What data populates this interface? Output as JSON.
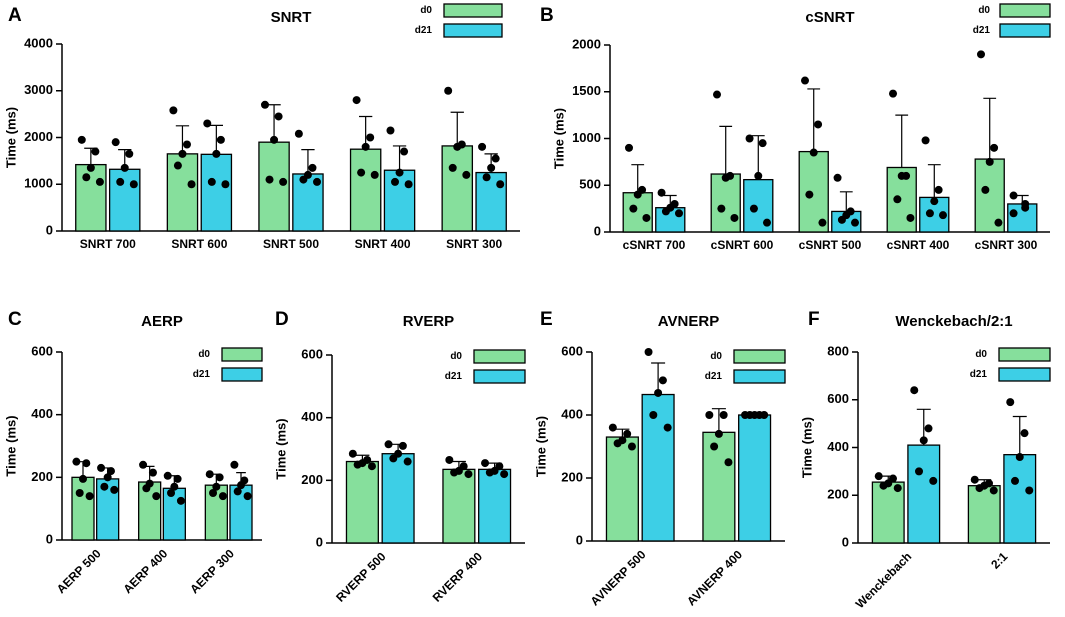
{
  "chart_data": [
    {
      "type": "bar",
      "panel": "A",
      "title": "SNRT",
      "ylabel": "Time (ms)",
      "legend": "upper right",
      "rotate_labels": false,
      "categories": [
        "SNRT 700",
        "SNRT 600",
        "SNRT 500",
        "SNRT 400",
        "SNRT 300"
      ],
      "ylim": [
        0,
        4000
      ],
      "yticks": [
        0,
        1000,
        2000,
        3000,
        4000
      ],
      "series": [
        {
          "name": "d0",
          "color": "#86df9c",
          "values": [
            1420,
            1650,
            1900,
            1750,
            1820
          ],
          "errors": [
            350,
            600,
            800,
            700,
            720
          ],
          "points": [
            [
              1950,
              1700,
              1350,
              1150,
              1050
            ],
            [
              2580,
              1850,
              1650,
              1400,
              1000
            ],
            [
              2700,
              2450,
              1950,
              1100,
              1050
            ],
            [
              2800,
              2000,
              1800,
              1250,
              1200
            ],
            [
              3000,
              1850,
              1800,
              1350,
              1200
            ]
          ]
        },
        {
          "name": "d21",
          "color": "#3dcfe6",
          "values": [
            1320,
            1640,
            1220,
            1300,
            1250
          ],
          "errors": [
            420,
            620,
            520,
            520,
            400
          ],
          "points": [
            [
              1900,
              1650,
              1350,
              1050,
              1000
            ],
            [
              2300,
              1950,
              1650,
              1050,
              1000
            ],
            [
              2080,
              1350,
              1200,
              1100,
              1050
            ],
            [
              2150,
              1700,
              1250,
              1050,
              1000
            ],
            [
              1800,
              1550,
              1350,
              1150,
              1000
            ]
          ]
        }
      ]
    },
    {
      "type": "bar",
      "panel": "B",
      "title": "cSNRT",
      "ylabel": "Time (ms)",
      "legend": "upper right",
      "rotate_labels": false,
      "categories": [
        "cSNRT 700",
        "cSNRT 600",
        "cSNRT 500",
        "cSNRT 400",
        "cSNRT 300"
      ],
      "ylim": [
        0,
        2000
      ],
      "yticks": [
        0,
        500,
        1000,
        1500,
        2000
      ],
      "series": [
        {
          "name": "d0",
          "color": "#86df9c",
          "values": [
            420,
            620,
            860,
            690,
            780
          ],
          "errors": [
            300,
            510,
            670,
            560,
            650
          ],
          "points": [
            [
              900,
              450,
              400,
              250,
              150
            ],
            [
              1470,
              600,
              580,
              250,
              150
            ],
            [
              1620,
              1150,
              850,
              400,
              100
            ],
            [
              1480,
              600,
              600,
              350,
              150
            ],
            [
              1900,
              900,
              750,
              450,
              100
            ]
          ]
        },
        {
          "name": "d21",
          "color": "#3dcfe6",
          "values": [
            260,
            560,
            220,
            370,
            300
          ],
          "errors": [
            130,
            470,
            210,
            350,
            90
          ],
          "points": [
            [
              420,
              300,
              260,
              220,
              200
            ],
            [
              1000,
              950,
              600,
              250,
              100
            ],
            [
              580,
              220,
              180,
              130,
              100
            ],
            [
              980,
              450,
              330,
              200,
              180
            ],
            [
              390,
              300,
              260,
              200
            ]
          ]
        }
      ]
    },
    {
      "type": "bar",
      "panel": "C",
      "title": "AERP",
      "ylabel": "Time (ms)",
      "legend": "upper right",
      "rotate_labels": true,
      "categories": [
        "AERP 500",
        "AERP 400",
        "AERP 300"
      ],
      "ylim": [
        0,
        600
      ],
      "yticks": [
        0,
        200,
        400,
        600
      ],
      "series": [
        {
          "name": "d0",
          "color": "#86df9c",
          "values": [
            200,
            185,
            175
          ],
          "errors": [
            50,
            50,
            35
          ],
          "points": [
            [
              250,
              245,
              195,
              150,
              140
            ],
            [
              240,
              215,
              180,
              165,
              140
            ],
            [
              210,
              200,
              170,
              150,
              140
            ]
          ]
        },
        {
          "name": "d21",
          "color": "#3dcfe6",
          "values": [
            195,
            165,
            175
          ],
          "errors": [
            35,
            40,
            40
          ],
          "points": [
            [
              230,
              220,
              200,
              170,
              160
            ],
            [
              205,
              195,
              170,
              150,
              125
            ],
            [
              240,
              190,
              175,
              155,
              140
            ]
          ]
        }
      ]
    },
    {
      "type": "bar",
      "panel": "D",
      "title": "RVERP",
      "ylabel": "Time (ms)",
      "legend": "upper right",
      "rotate_labels": true,
      "categories": [
        "RVERP 500",
        "RVERP 400"
      ],
      "ylim": [
        0,
        600
      ],
      "yticks": [
        0,
        200,
        400,
        600
      ],
      "series": [
        {
          "name": "d0",
          "color": "#86df9c",
          "values": [
            260,
            235
          ],
          "errors": [
            20,
            25
          ],
          "points": [
            [
              285,
              265,
              255,
              250,
              245
            ],
            [
              265,
              245,
              230,
              225,
              220
            ]
          ]
        },
        {
          "name": "d21",
          "color": "#3dcfe6",
          "values": [
            285,
            235
          ],
          "errors": [
            30,
            20
          ],
          "points": [
            [
              315,
              310,
              285,
              270,
              260
            ],
            [
              255,
              245,
              230,
              225,
              220
            ]
          ]
        }
      ]
    },
    {
      "type": "bar",
      "panel": "E",
      "title": "AVNERP",
      "ylabel": "Time (ms)",
      "legend": "upper right",
      "rotate_labels": true,
      "categories": [
        "AVNERP 500",
        "AVNERP 400"
      ],
      "ylim": [
        0,
        600
      ],
      "yticks": [
        0,
        200,
        400,
        600
      ],
      "series": [
        {
          "name": "d0",
          "color": "#86df9c",
          "values": [
            330,
            345
          ],
          "errors": [
            25,
            75
          ],
          "points": [
            [
              360,
              340,
              320,
              310,
              300
            ],
            [
              400,
              400,
              340,
              300,
              250
            ]
          ]
        },
        {
          "name": "d21",
          "color": "#3dcfe6",
          "values": [
            465,
            400
          ],
          "errors": [
            100,
            0
          ],
          "points": [
            [
              600,
              510,
              470,
              400,
              360
            ],
            [
              400,
              400,
              400,
              400,
              400
            ]
          ]
        }
      ]
    },
    {
      "type": "bar",
      "panel": "F",
      "title": "Wenckebach/2:1",
      "ylabel": "Time (ms)",
      "legend": "upper right",
      "rotate_labels": true,
      "categories": [
        "Wenckebach",
        "2:1"
      ],
      "ylim": [
        0,
        800
      ],
      "yticks": [
        0,
        200,
        400,
        600,
        800
      ],
      "series": [
        {
          "name": "d0",
          "color": "#86df9c",
          "values": [
            255,
            240
          ],
          "errors": [
            25,
            25
          ],
          "points": [
            [
              280,
              270,
              250,
              240,
              230
            ],
            [
              265,
              250,
              240,
              230,
              220
            ]
          ]
        },
        {
          "name": "d21",
          "color": "#3dcfe6",
          "values": [
            410,
            370
          ],
          "errors": [
            150,
            160
          ],
          "points": [
            [
              640,
              480,
              430,
              300,
              260
            ],
            [
              590,
              460,
              360,
              260,
              220
            ]
          ]
        }
      ]
    }
  ]
}
